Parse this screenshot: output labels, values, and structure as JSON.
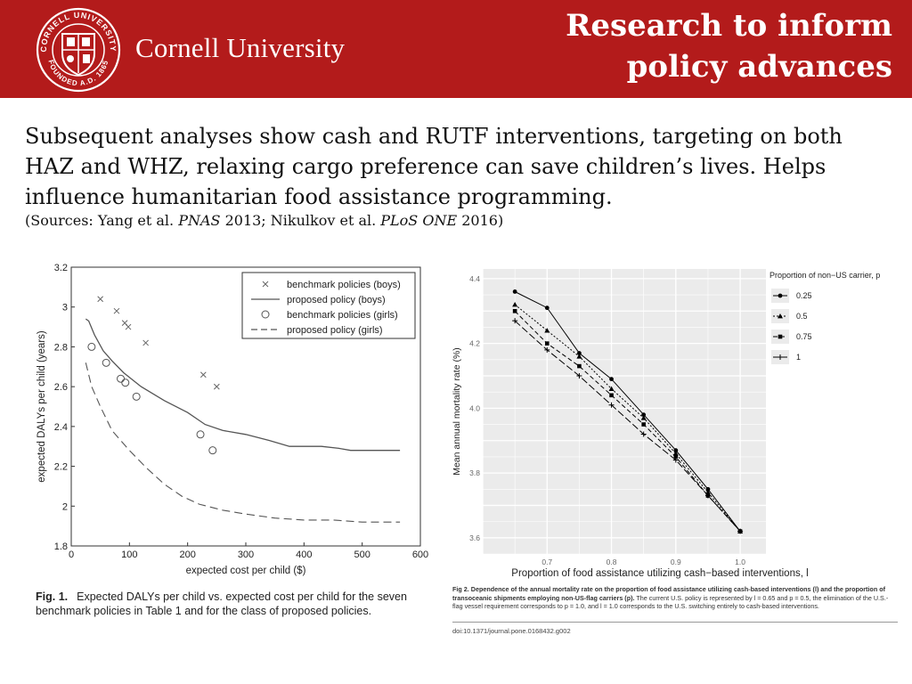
{
  "header": {
    "brand": "Cornell University",
    "title_line1": "Research to inform",
    "title_line2": "policy advances",
    "seal_text": "CORNELL UNIVERSITY FOUNDED A.D. 1865",
    "colors": {
      "banner": "#b31b1b",
      "text": "#ffffff"
    }
  },
  "body": {
    "paragraph": "Subsequent analyses show cash and RUTF interventions, targeting on both HAZ and WHZ, relaxing cargo preference can save children’s lives. Helps influence humanitarian food assistance programming.",
    "sources": {
      "prefix": "(Sources: Yang et al. ",
      "journal1": "PNAS",
      "middle": " 2013; Nikulkov et al. ",
      "journal2": "PLoS ONE",
      "suffix": " 2016)"
    }
  },
  "chart_data": [
    {
      "type": "scatter",
      "xlabel": "expected cost per child ($)",
      "ylabel": "expected DALYs per child (years)",
      "xlim": [
        0,
        600
      ],
      "ylim": [
        1.8,
        3.2
      ],
      "xticks": [
        "0",
        "100",
        "200",
        "300",
        "400",
        "500",
        "600"
      ],
      "yticks": [
        "1.8",
        "2",
        "2.2",
        "2.4",
        "2.6",
        "2.8",
        "3",
        "3.2"
      ],
      "grid": false,
      "legend_position": "top-right",
      "series": [
        {
          "name": "benchmark policies (boys)",
          "marker": "x",
          "points": [
            [
              50,
              3.04
            ],
            [
              78,
              2.98
            ],
            [
              92,
              2.92
            ],
            [
              98,
              2.9
            ],
            [
              128,
              2.82
            ],
            [
              227,
              2.66
            ],
            [
              250,
              2.6
            ]
          ]
        },
        {
          "name": "proposed policy (boys)",
          "style": "solid",
          "points": [
            [
              25,
              2.94
            ],
            [
              30,
              2.93
            ],
            [
              40,
              2.86
            ],
            [
              55,
              2.78
            ],
            [
              70,
              2.73
            ],
            [
              90,
              2.67
            ],
            [
              120,
              2.6
            ],
            [
              160,
              2.53
            ],
            [
              200,
              2.47
            ],
            [
              230,
              2.41
            ],
            [
              260,
              2.38
            ],
            [
              300,
              2.36
            ],
            [
              340,
              2.33
            ],
            [
              375,
              2.3
            ],
            [
              400,
              2.3
            ],
            [
              430,
              2.3
            ],
            [
              460,
              2.29
            ],
            [
              480,
              2.28
            ],
            [
              520,
              2.28
            ],
            [
              565,
              2.28
            ]
          ]
        },
        {
          "name": "benchmark policies (girls)",
          "marker": "o",
          "points": [
            [
              35,
              2.8
            ],
            [
              60,
              2.72
            ],
            [
              85,
              2.64
            ],
            [
              93,
              2.62
            ],
            [
              112,
              2.55
            ],
            [
              222,
              2.36
            ],
            [
              243,
              2.28
            ]
          ]
        },
        {
          "name": "proposed policy (girls)",
          "style": "dashed",
          "points": [
            [
              25,
              2.72
            ],
            [
              35,
              2.6
            ],
            [
              50,
              2.5
            ],
            [
              70,
              2.38
            ],
            [
              100,
              2.28
            ],
            [
              130,
              2.19
            ],
            [
              160,
              2.11
            ],
            [
              190,
              2.05
            ],
            [
              220,
              2.01
            ],
            [
              260,
              1.98
            ],
            [
              300,
              1.96
            ],
            [
              350,
              1.94
            ],
            [
              400,
              1.93
            ],
            [
              450,
              1.93
            ],
            [
              500,
              1.92
            ],
            [
              565,
              1.92
            ]
          ]
        }
      ]
    },
    {
      "type": "line",
      "xlabel": "Proportion of food assistance utilizing cash−based interventions, l",
      "ylabel": "Mean annual mortality rate (%)",
      "xlim": [
        0.6,
        1.04
      ],
      "ylim": [
        3.55,
        4.43
      ],
      "xticks": [
        "0.7",
        "0.8",
        "0.9",
        "1.0"
      ],
      "yticks": [
        "3.6",
        "3.8",
        "4.0",
        "4.2",
        "4.4"
      ],
      "grid": true,
      "legend_title": "Proportion of non−US carrier, p",
      "legend_position": "right",
      "x": [
        0.65,
        0.7,
        0.75,
        0.8,
        0.85,
        0.9,
        0.95,
        1.0
      ],
      "series": [
        {
          "name": "0.25",
          "style": "solid",
          "marker": "circle",
          "values": [
            4.36,
            4.31,
            4.17,
            4.09,
            3.98,
            3.87,
            3.75,
            3.62
          ]
        },
        {
          "name": "0.5",
          "style": "dotted",
          "marker": "triangle",
          "values": [
            4.32,
            4.24,
            4.16,
            4.06,
            3.97,
            3.86,
            3.74,
            3.62
          ]
        },
        {
          "name": "0.75",
          "style": "dashed",
          "marker": "square",
          "values": [
            4.3,
            4.2,
            4.13,
            4.04,
            3.95,
            3.85,
            3.73,
            3.62
          ]
        },
        {
          "name": "1",
          "style": "longdash",
          "marker": "plus",
          "values": [
            4.27,
            4.18,
            4.1,
            4.01,
            3.92,
            3.84,
            3.73,
            3.62
          ]
        }
      ]
    }
  ],
  "captions": {
    "fig1_label": "Fig. 1.",
    "fig1_text": "Expected DALYs per child vs. expected cost per child for the seven benchmark policies in Table 1 and for the class of proposed policies.",
    "fig2_label": "Fig 2. Dependence of the annual mortality rate on the proportion of food assistance utilizing cash-based interventions (l) and the proportion of transoceanic shipments employing non-US-flag carriers (p).",
    "fig2_text": "The current U.S. policy is represented by l = 0.65 and p = 0.5, the elimination of the U.S.-flag vessel requirement corresponds to p = 1.0, and l = 1.0 corresponds to the U.S. switching entirely to cash-based interventions.",
    "doi": "doi:10.1371/journal.pone.0168432.g002"
  }
}
